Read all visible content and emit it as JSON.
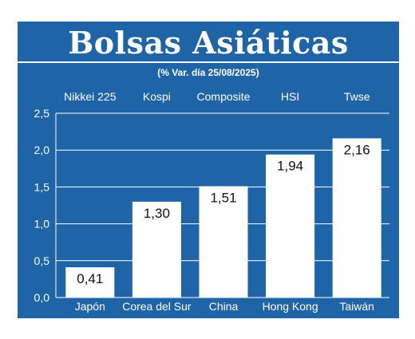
{
  "chart_data": {
    "type": "bar",
    "title": "Bolsas Asiáticas",
    "subtitle": "(% Var. día  25/08/2025)",
    "categories": [
      "Japón",
      "Corea del Sur",
      "China",
      "Hong Kong",
      "Taiwán"
    ],
    "indices": [
      "Nikkei 225",
      "Kospi",
      "Composite",
      "HSI",
      "Twse"
    ],
    "values": [
      0.41,
      1.3,
      1.51,
      1.94,
      2.16
    ],
    "value_labels": [
      "0,41",
      "1,30",
      "1,51",
      "1,94",
      "2,16"
    ],
    "y_ticks": [
      "0,0",
      "0,5",
      "1,0",
      "1,5",
      "2,0",
      "2,5"
    ],
    "ylim": [
      0,
      2.5
    ],
    "grid": true,
    "colors": {
      "background": "#1f64a6",
      "bar": "#ffffff",
      "grid": "#ffffff"
    }
  }
}
